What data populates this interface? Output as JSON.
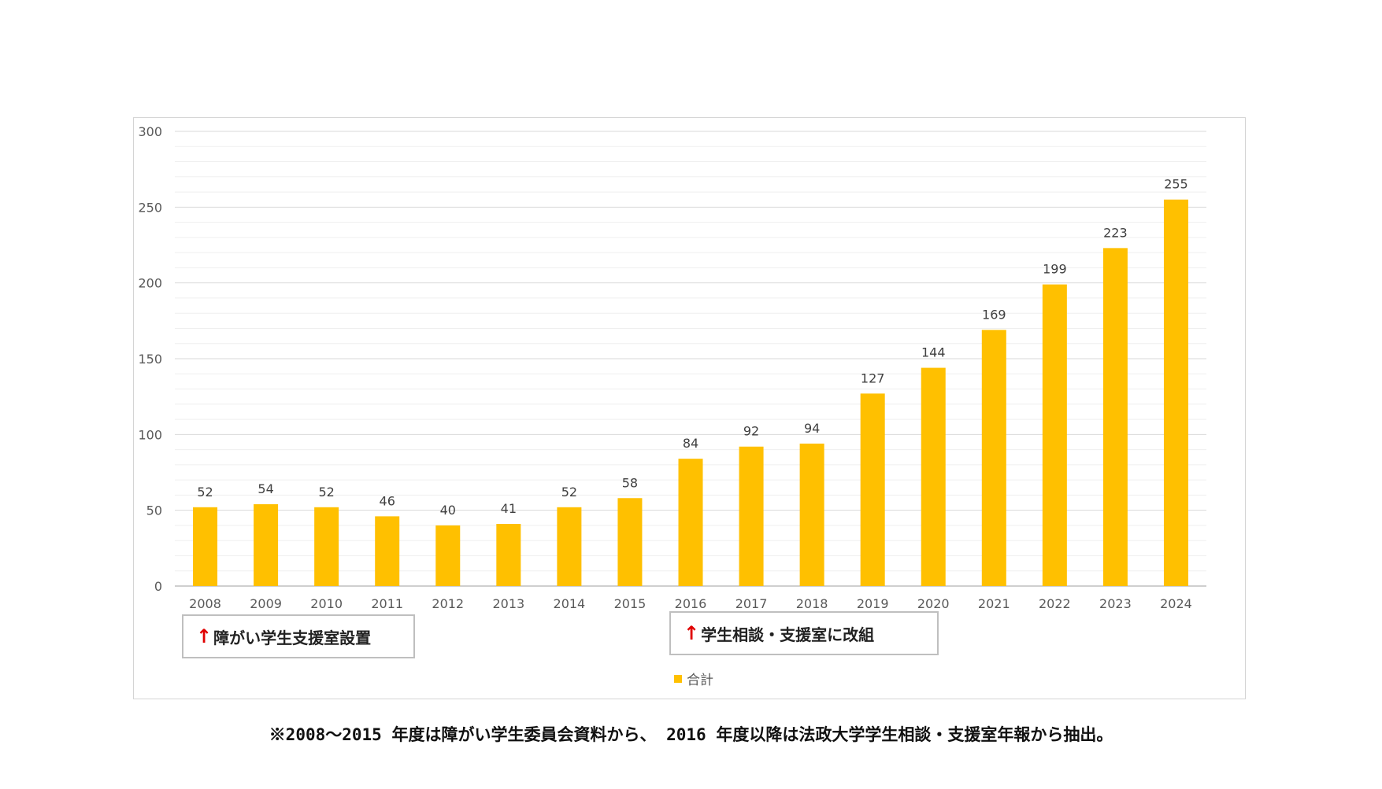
{
  "chart_data": {
    "type": "bar",
    "categories": [
      "2008",
      "2009",
      "2010",
      "2011",
      "2012",
      "2013",
      "2014",
      "2015",
      "2016",
      "2017",
      "2018",
      "2019",
      "2020",
      "2021",
      "2022",
      "2023",
      "2024"
    ],
    "series": [
      {
        "name": "合計",
        "values": [
          52,
          54,
          52,
          46,
          40,
          41,
          52,
          58,
          84,
          92,
          94,
          127,
          144,
          169,
          199,
          223,
          255
        ]
      }
    ],
    "ylim": [
      0,
      300
    ],
    "yticks": [
      0,
      50,
      100,
      150,
      200,
      250,
      300
    ],
    "grid": true,
    "minor_gridlines": true,
    "legend_position": "bottom",
    "data_labels": true,
    "bar_color": "#FFC000"
  },
  "annotations": {
    "first": {
      "arrow": "↑",
      "text": "障がい学生支援室設置"
    },
    "second": {
      "arrow": "↑",
      "text": "学生相談・支援室に改組"
    }
  },
  "footnote": "※2008～2015 年度は障がい学生委員会資料から、 2016 年度以降は法政大学学生相談・支援室年報から抽出。",
  "colors": {
    "bar": "#FFC000",
    "major_grid": "#d9d9d9",
    "minor_grid": "#efefef",
    "arrow": "#e00000"
  }
}
